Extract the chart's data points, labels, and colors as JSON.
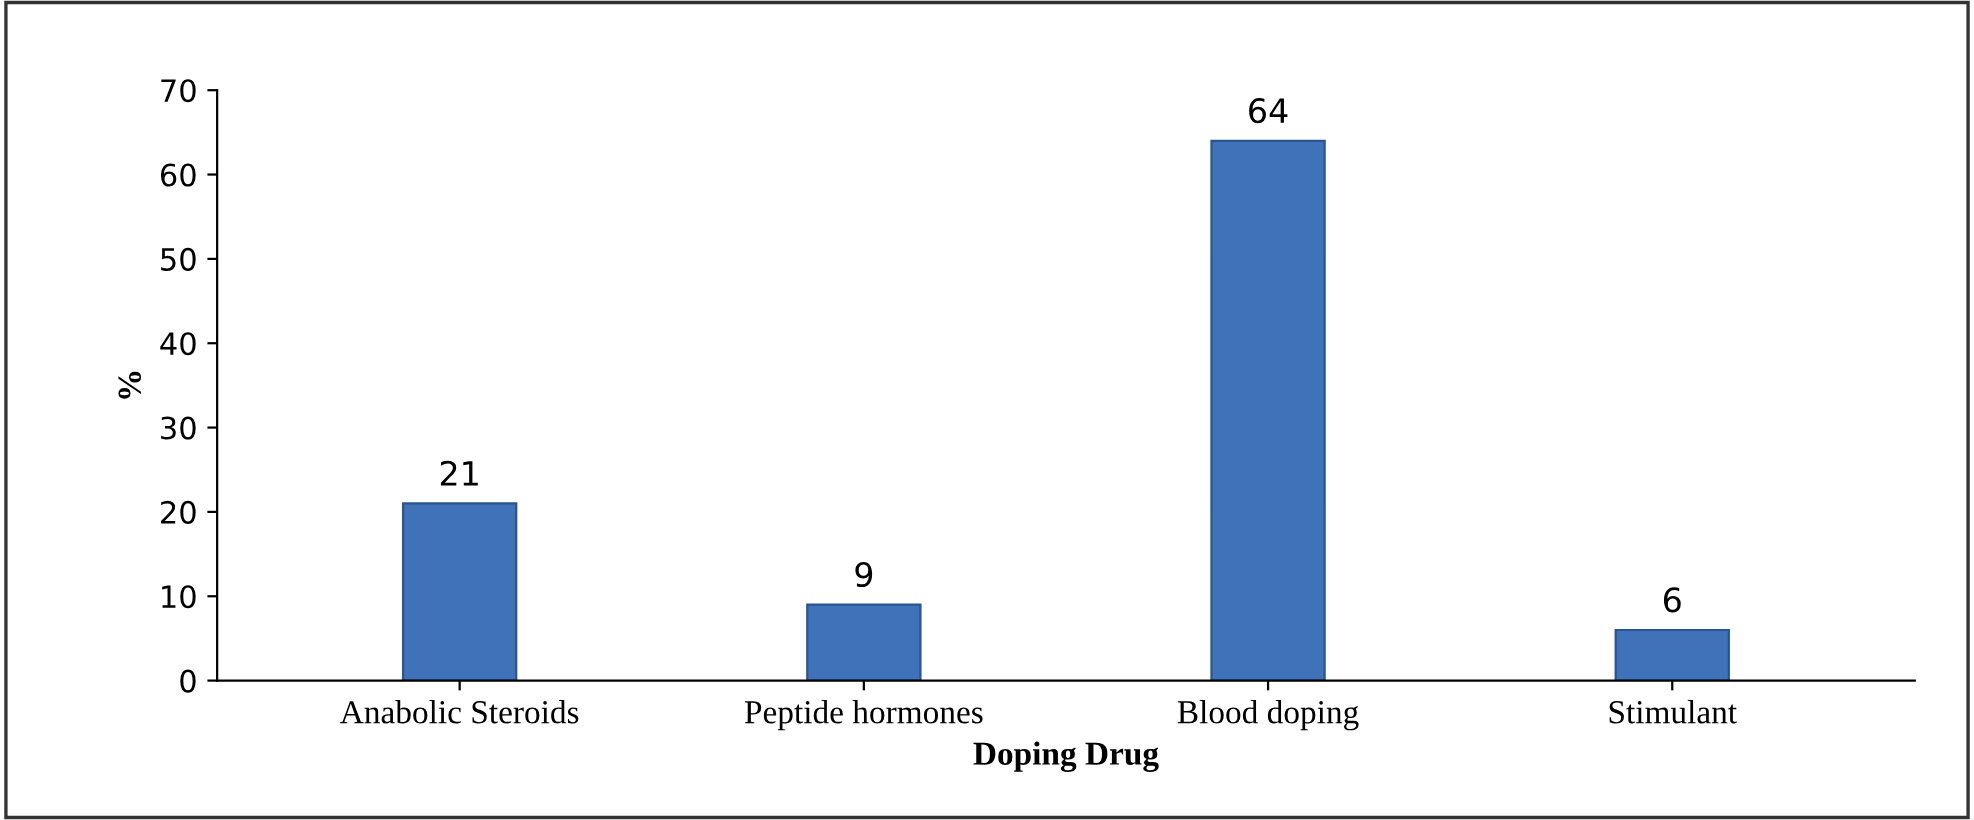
{
  "chart_data": {
    "type": "bar",
    "xlabel": "Doping Drug",
    "ylabel": "%",
    "categories": [
      "Anabolic Steroids",
      "Peptide hormones",
      "Blood doping",
      "Stimulant"
    ],
    "values": [
      21,
      9,
      64,
      6
    ],
    "color": "#3f72b8",
    "ylim": [
      0,
      70
    ],
    "yticks": [
      0,
      10,
      20,
      30,
      40,
      50,
      60,
      70
    ],
    "grid": false,
    "data_labels": true
  }
}
